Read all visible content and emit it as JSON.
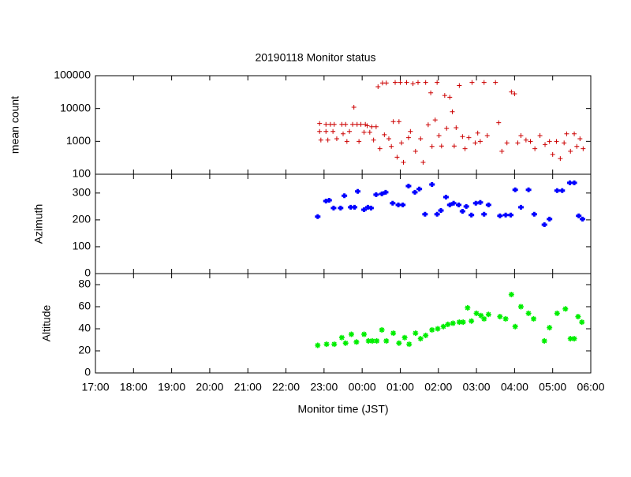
{
  "chart_data": [
    {
      "type": "scatter",
      "title": "20190118 Monitor status",
      "ylabel": "mean count",
      "log_scale": true,
      "color": "#cc0000",
      "marker": "plus",
      "xlim": [
        "17:00",
        "06:00"
      ],
      "ylim": [
        100,
        100000
      ],
      "yticks": [
        100,
        1000,
        10000,
        100000
      ],
      "x": [
        "22:53",
        "22:53",
        "22:55",
        "23:03",
        "23:03",
        "23:06",
        "23:10",
        "23:14",
        "23:16",
        "23:20",
        "23:28",
        "23:30",
        "23:34",
        "23:36",
        "23:40",
        "23:45",
        "23:47",
        "23:52",
        "23:55",
        "23:58",
        "00:03",
        "00:05",
        "00:08",
        "00:12",
        "00:15",
        "00:18",
        "00:22",
        "00:25",
        "00:28",
        "00:32",
        "00:35",
        "00:38",
        "00:42",
        "00:46",
        "00:49",
        "00:52",
        "00:55",
        "00:58",
        "01:00",
        "01:02",
        "01:05",
        "01:10",
        "01:13",
        "01:16",
        "01:20",
        "01:24",
        "01:28",
        "01:32",
        "01:36",
        "01:40",
        "01:44",
        "01:48",
        "01:50",
        "01:55",
        "01:58",
        "02:01",
        "02:05",
        "02:10",
        "02:13",
        "02:18",
        "02:22",
        "02:25",
        "02:28",
        "02:33",
        "02:38",
        "02:42",
        "02:48",
        "02:53",
        "02:58",
        "03:02",
        "03:06",
        "03:12",
        "03:17",
        "03:30",
        "03:35",
        "03:40",
        "03:48",
        "03:55",
        "04:00",
        "04:05",
        "04:10",
        "04:18",
        "04:25",
        "04:32",
        "04:40",
        "04:48",
        "04:55",
        "05:00",
        "05:06",
        "05:12",
        "05:18",
        "05:22",
        "05:28",
        "05:34",
        "05:38",
        "05:43",
        "05:48"
      ],
      "values": [
        3500,
        2000,
        1100,
        3300,
        2000,
        1100,
        3300,
        2000,
        3300,
        1200,
        3300,
        1700,
        3300,
        1000,
        2000,
        3300,
        11000,
        3300,
        1000,
        3300,
        1900,
        3300,
        3000,
        1900,
        2800,
        1100,
        2800,
        46000,
        600,
        60000,
        1600,
        60000,
        1200,
        700,
        4000,
        62000,
        330,
        4000,
        62000,
        900,
        230,
        62000,
        1300,
        2000,
        57000,
        500,
        62000,
        1200,
        230,
        62000,
        3200,
        30000,
        700,
        4500,
        62000,
        1500,
        720,
        25000,
        2500,
        22000,
        8000,
        720,
        2600,
        50000,
        1400,
        600,
        1300,
        62000,
        900,
        1800,
        1000,
        62000,
        1500,
        62000,
        3700,
        500,
        900,
        32000,
        28000,
        900,
        1500,
        1100,
        1000,
        600,
        1500,
        800,
        1000,
        400,
        1000,
        300,
        900,
        1700,
        500,
        1700,
        700,
        1200,
        600
      ]
    },
    {
      "type": "scatter",
      "ylabel": "Azimuth",
      "color": "#0000ff",
      "marker": "bold",
      "xlim": [
        "17:00",
        "06:00"
      ],
      "ylim": [
        0,
        370
      ],
      "yticks": [
        0,
        100,
        200,
        300
      ],
      "x": [
        "22:50",
        "23:03",
        "23:08",
        "23:15",
        "23:26",
        "23:32",
        "23:42",
        "23:48",
        "23:53",
        "24:03",
        "00:09",
        "00:14",
        "00:22",
        "00:31",
        "00:37",
        "00:48",
        "00:57",
        "01:04",
        "01:13",
        "01:23",
        "01:30",
        "01:39",
        "01:50",
        "01:58",
        "02:04",
        "02:12",
        "02:18",
        "02:24",
        "02:32",
        "02:38",
        "02:44",
        "02:52",
        "02:59",
        "03:06",
        "03:12",
        "03:19",
        "03:37",
        "03:46",
        "03:54",
        "04:01",
        "04:10",
        "04:22",
        "04:31",
        "04:47",
        "04:55",
        "05:07",
        "05:15",
        "05:27",
        "05:34",
        "05:41",
        "05:47"
      ],
      "values": [
        212,
        270,
        273,
        244,
        244,
        290,
        247,
        247,
        306,
        238,
        247,
        244,
        294,
        297,
        303,
        262,
        256,
        256,
        326,
        303,
        315,
        221,
        332,
        221,
        235,
        285,
        256,
        262,
        256,
        232,
        250,
        218,
        262,
        265,
        221,
        256,
        215,
        218,
        218,
        312,
        247,
        312,
        221,
        182,
        203,
        309,
        309,
        338,
        338,
        215,
        203
      ]
    },
    {
      "type": "scatter",
      "ylabel": "Altitude",
      "xlabel": "Monitor time (JST)",
      "color": "#00ee00",
      "marker": "star",
      "xlim": [
        "17:00",
        "06:00"
      ],
      "ylim": [
        0,
        90
      ],
      "yticks": [
        0,
        20,
        40,
        60,
        80
      ],
      "xticks": [
        "17:00",
        "18:00",
        "19:00",
        "20:00",
        "21:00",
        "22:00",
        "23:00",
        "00:00",
        "01:00",
        "02:00",
        "03:00",
        "04:00",
        "05:00",
        "06:00"
      ],
      "x": [
        "22:50",
        "23:04",
        "23:16",
        "23:28",
        "23:34",
        "23:43",
        "23:51",
        "00:03",
        "00:10",
        "00:16",
        "00:23",
        "00:31",
        "00:38",
        "00:49",
        "00:58",
        "01:07",
        "01:14",
        "01:24",
        "01:32",
        "01:40",
        "01:50",
        "01:59",
        "02:08",
        "02:15",
        "02:23",
        "02:33",
        "02:39",
        "02:46",
        "02:52",
        "03:00",
        "03:07",
        "03:12",
        "03:19",
        "03:37",
        "03:46",
        "03:55",
        "04:01",
        "04:10",
        "04:22",
        "04:30",
        "04:47",
        "04:55",
        "05:07",
        "05:20",
        "05:28",
        "05:34",
        "05:40",
        "05:46"
      ],
      "values": [
        25,
        26,
        26,
        32,
        27,
        35,
        28,
        35,
        29,
        29,
        29,
        39,
        29,
        36,
        27,
        32,
        26,
        36,
        31,
        34,
        39,
        40,
        42,
        44,
        45,
        46,
        46,
        59,
        47,
        54,
        52,
        49,
        53,
        51,
        49,
        71,
        42,
        60,
        54,
        49,
        29,
        41,
        54,
        58,
        31,
        31,
        51,
        46
      ]
    }
  ]
}
